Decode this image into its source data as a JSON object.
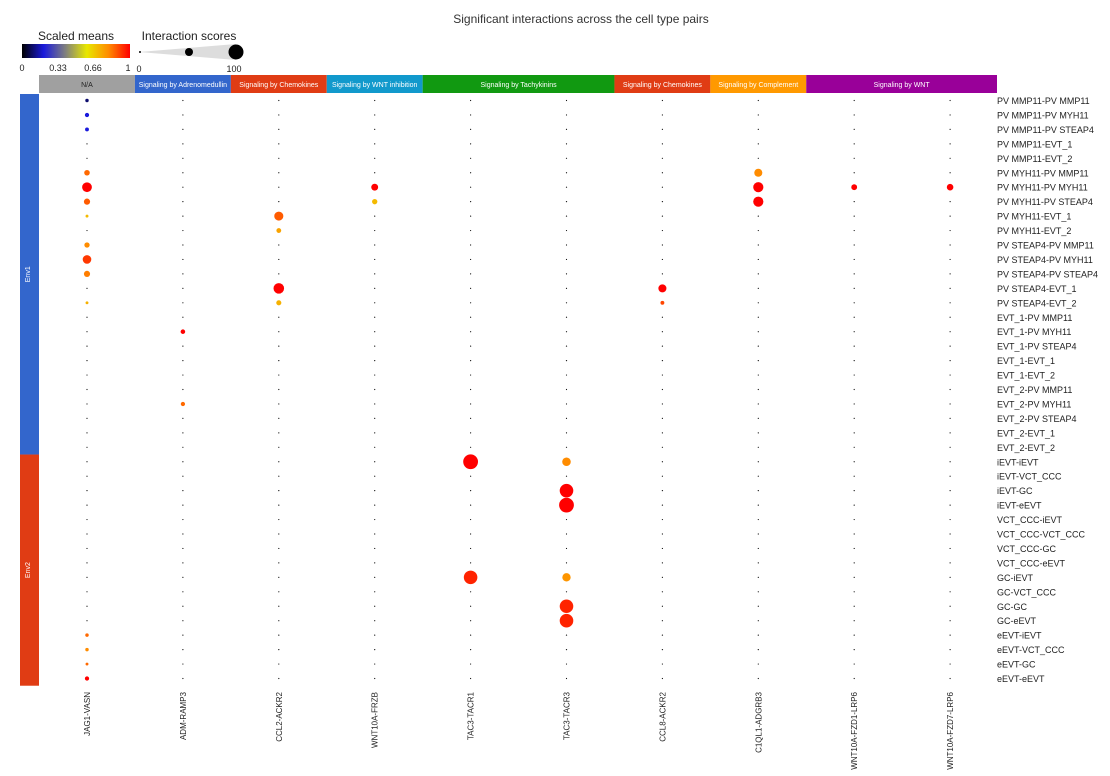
{
  "chart_data": {
    "type": "scatter",
    "title": "Significant interactions across the cell type pairs",
    "legend": {
      "scaled_means_title": "Scaled means",
      "scaled_means_ticks": [
        "0",
        "0.33",
        "0.66",
        "1"
      ],
      "colormap": [
        "#000000",
        "#1a1adc",
        "#7f7f7f",
        "#e8e800",
        "#ff8c00",
        "#ff0000"
      ],
      "interaction_scores_title": "Interaction scores",
      "interaction_scores_ticks": [
        "0",
        "100"
      ]
    },
    "columns": [
      "JAG1-VASN",
      "ADM-RAMP3",
      "CCL2-ACKR2",
      "WNT10A-FRZB",
      "TAC3-TACR1",
      "TAC3-TACR3",
      "CCL8-ACKR2",
      "C1QL1-ADGRB3",
      "WNT10A-FZD1-LRP6",
      "WNT10A-FZD7-LRP6"
    ],
    "column_groups": [
      {
        "label": "N/A",
        "color": "#a0a0a0",
        "start": 0,
        "span": 1
      },
      {
        "label": "Signaling by Adrenomedullin",
        "color": "#3366cc",
        "start": 1,
        "span": 1
      },
      {
        "label": "Signaling by Chemokines",
        "color": "#e03c14",
        "start": 2,
        "span": 1
      },
      {
        "label": "Signaling by WNT inhibition",
        "color": "#1199cc",
        "start": 3,
        "span": 1
      },
      {
        "label": "Signaling by Tachykinins",
        "color": "#119911",
        "start": 4,
        "span": 2
      },
      {
        "label": "Signaling by Chemokines",
        "color": "#e03c14",
        "start": 6,
        "span": 1
      },
      {
        "label": "Signaling by Complement",
        "color": "#ff9900",
        "start": 7,
        "span": 1
      },
      {
        "label": "Signaling by WNT",
        "color": "#990099",
        "start": 8,
        "span": 2
      }
    ],
    "rows": [
      "PV MMP11-PV MMP11",
      "PV MMP11-PV MYH11",
      "PV MMP11-PV STEAP4",
      "PV MMP11-EVT_1",
      "PV MMP11-EVT_2",
      "PV MYH11-PV MMP11",
      "PV MYH11-PV MYH11",
      "PV MYH11-PV STEAP4",
      "PV MYH11-EVT_1",
      "PV MYH11-EVT_2",
      "PV STEAP4-PV MMP11",
      "PV STEAP4-PV MYH11",
      "PV STEAP4-PV STEAP4",
      "PV STEAP4-EVT_1",
      "PV STEAP4-EVT_2",
      "EVT_1-PV MMP11",
      "EVT_1-PV MYH11",
      "EVT_1-PV STEAP4",
      "EVT_1-EVT_1",
      "EVT_1-EVT_2",
      "EVT_2-PV MMP11",
      "EVT_2-PV MYH11",
      "EVT_2-PV STEAP4",
      "EVT_2-EVT_1",
      "EVT_2-EVT_2",
      "iEVT-iEVT",
      "iEVT-VCT_CCC",
      "iEVT-GC",
      "iEVT-eEVT",
      "VCT_CCC-iEVT",
      "VCT_CCC-VCT_CCC",
      "VCT_CCC-GC",
      "VCT_CCC-eEVT",
      "GC-iEVT",
      "GC-VCT_CCC",
      "GC-GC",
      "GC-eEVT",
      "eEVT-iEVT",
      "eEVT-VCT_CCC",
      "eEVT-GC",
      "eEVT-eEVT"
    ],
    "row_groups": [
      {
        "label": "Env1",
        "color": "#3366cc",
        "start": 0,
        "span": 25
      },
      {
        "label": "Env2",
        "color": "#e03c14",
        "start": 25,
        "span": 16
      }
    ],
    "points": [
      {
        "row": 0,
        "col": 0,
        "score": 2,
        "mean": 0.1
      },
      {
        "row": 1,
        "col": 0,
        "score": 4,
        "mean": 0.2
      },
      {
        "row": 2,
        "col": 0,
        "score": 3,
        "mean": 0.2
      },
      {
        "row": 5,
        "col": 0,
        "score": 9,
        "mean": 0.85
      },
      {
        "row": 6,
        "col": 0,
        "score": 38,
        "mean": 1.0
      },
      {
        "row": 7,
        "col": 0,
        "score": 12,
        "mean": 0.87
      },
      {
        "row": 8,
        "col": 0,
        "score": 1,
        "mean": 0.7
      },
      {
        "row": 10,
        "col": 0,
        "score": 8,
        "mean": 0.8
      },
      {
        "row": 11,
        "col": 0,
        "score": 28,
        "mean": 0.92
      },
      {
        "row": 12,
        "col": 0,
        "score": 12,
        "mean": 0.82
      },
      {
        "row": 14,
        "col": 0,
        "score": 1,
        "mean": 0.72
      },
      {
        "row": 37,
        "col": 0,
        "score": 2,
        "mean": 0.85
      },
      {
        "row": 38,
        "col": 0,
        "score": 2,
        "mean": 0.8
      },
      {
        "row": 39,
        "col": 0,
        "score": 1,
        "mean": 0.85
      },
      {
        "row": 40,
        "col": 0,
        "score": 4,
        "mean": 1.0
      },
      {
        "row": 16,
        "col": 1,
        "score": 5,
        "mean": 1.0
      },
      {
        "row": 21,
        "col": 1,
        "score": 4,
        "mean": 0.85
      },
      {
        "row": 8,
        "col": 2,
        "score": 32,
        "mean": 0.87
      },
      {
        "row": 9,
        "col": 2,
        "score": 6,
        "mean": 0.75
      },
      {
        "row": 13,
        "col": 2,
        "score": 46,
        "mean": 1.0
      },
      {
        "row": 14,
        "col": 2,
        "score": 7,
        "mean": 0.72
      },
      {
        "row": 6,
        "col": 3,
        "score": 16,
        "mean": 1.0
      },
      {
        "row": 7,
        "col": 3,
        "score": 8,
        "mean": 0.7
      },
      {
        "row": 25,
        "col": 4,
        "score": 100,
        "mean": 1.0
      },
      {
        "row": 33,
        "col": 4,
        "score": 82,
        "mean": 0.95
      },
      {
        "row": 25,
        "col": 5,
        "score": 28,
        "mean": 0.8
      },
      {
        "row": 27,
        "col": 5,
        "score": 82,
        "mean": 1.0
      },
      {
        "row": 28,
        "col": 5,
        "score": 100,
        "mean": 1.0
      },
      {
        "row": 33,
        "col": 5,
        "score": 26,
        "mean": 0.78
      },
      {
        "row": 35,
        "col": 5,
        "score": 82,
        "mean": 0.95
      },
      {
        "row": 36,
        "col": 5,
        "score": 82,
        "mean": 0.95
      },
      {
        "row": 13,
        "col": 6,
        "score": 24,
        "mean": 1.0
      },
      {
        "row": 14,
        "col": 6,
        "score": 3,
        "mean": 0.9
      },
      {
        "row": 5,
        "col": 7,
        "score": 24,
        "mean": 0.8
      },
      {
        "row": 6,
        "col": 7,
        "score": 42,
        "mean": 1.0
      },
      {
        "row": 7,
        "col": 7,
        "score": 42,
        "mean": 1.0
      },
      {
        "row": 6,
        "col": 8,
        "score": 10,
        "mean": 1.0
      },
      {
        "row": 6,
        "col": 9,
        "score": 14,
        "mean": 1.0
      }
    ]
  }
}
